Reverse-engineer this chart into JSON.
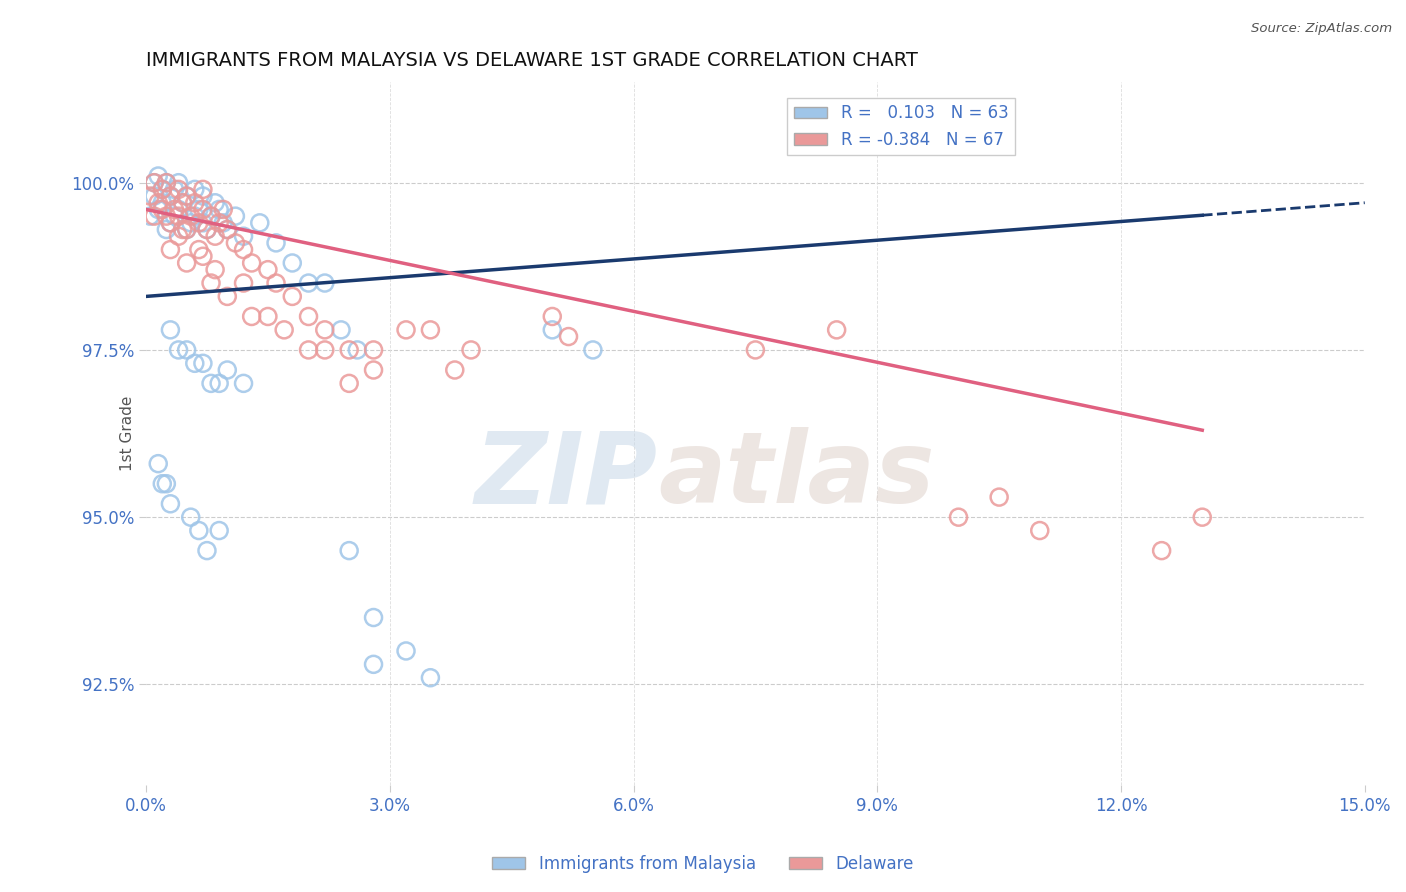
{
  "title": "IMMIGRANTS FROM MALAYSIA VS DELAWARE 1ST GRADE CORRELATION CHART",
  "source": "Source: ZipAtlas.com",
  "ylabel": "1st Grade",
  "xmin": 0.0,
  "xmax": 15.0,
  "ymin": 91.0,
  "ymax": 101.5,
  "yticks": [
    92.5,
    95.0,
    97.5,
    100.0
  ],
  "xticks": [
    0.0,
    3.0,
    6.0,
    9.0,
    12.0,
    15.0
  ],
  "R_blue": 0.103,
  "N_blue": 63,
  "R_pink": -0.384,
  "N_pink": 67,
  "blue_color": "#9fc5e8",
  "pink_color": "#ea9999",
  "blue_line_color": "#1a3a6e",
  "pink_line_color": "#e06080",
  "axis_color": "#4472c4",
  "watermark_zip": "ZIP",
  "watermark_atlas": "atlas",
  "blue_scatter_x": [
    0.05,
    0.1,
    0.1,
    0.15,
    0.15,
    0.2,
    0.2,
    0.25,
    0.25,
    0.3,
    0.3,
    0.35,
    0.35,
    0.4,
    0.4,
    0.45,
    0.5,
    0.5,
    0.55,
    0.6,
    0.6,
    0.65,
    0.7,
    0.7,
    0.75,
    0.8,
    0.85,
    0.9,
    0.95,
    1.0,
    1.1,
    1.2,
    1.4,
    1.6,
    1.8,
    2.0,
    2.2,
    2.4,
    2.6,
    0.3,
    0.5,
    0.6,
    0.8,
    1.0,
    1.2,
    0.4,
    0.9,
    0.7,
    5.0,
    5.5,
    0.2,
    0.3,
    0.9,
    2.5,
    2.8,
    3.2,
    2.8,
    3.5,
    0.15,
    0.25,
    0.55,
    0.65,
    0.75
  ],
  "blue_scatter_y": [
    99.5,
    99.8,
    100.0,
    99.6,
    100.1,
    99.7,
    99.9,
    99.3,
    100.0,
    99.4,
    99.8,
    99.5,
    99.9,
    99.6,
    100.0,
    99.7,
    99.3,
    99.8,
    99.4,
    99.5,
    99.9,
    99.6,
    99.4,
    99.8,
    99.3,
    99.5,
    99.7,
    99.6,
    99.4,
    99.3,
    99.5,
    99.2,
    99.4,
    99.1,
    98.8,
    98.5,
    98.5,
    97.8,
    97.5,
    97.8,
    97.5,
    97.3,
    97.0,
    97.2,
    97.0,
    97.5,
    97.0,
    97.3,
    97.8,
    97.5,
    95.5,
    95.2,
    94.8,
    94.5,
    93.5,
    93.0,
    92.8,
    92.6,
    95.8,
    95.5,
    95.0,
    94.8,
    94.5
  ],
  "pink_scatter_x": [
    0.05,
    0.1,
    0.1,
    0.15,
    0.2,
    0.2,
    0.25,
    0.3,
    0.3,
    0.35,
    0.4,
    0.4,
    0.45,
    0.5,
    0.5,
    0.55,
    0.6,
    0.65,
    0.7,
    0.7,
    0.75,
    0.8,
    0.85,
    0.9,
    0.95,
    1.0,
    1.1,
    1.2,
    1.3,
    1.5,
    1.6,
    1.8,
    2.0,
    2.2,
    2.5,
    2.8,
    1.2,
    1.5,
    2.0,
    2.5,
    3.5,
    3.8,
    4.0,
    5.0,
    5.2,
    7.5,
    8.5,
    10.0,
    10.5,
    11.0,
    12.5,
    13.0,
    0.3,
    0.5,
    0.8,
    1.0,
    1.3,
    1.7,
    2.2,
    0.4,
    0.7,
    2.8,
    3.2,
    0.25,
    0.45,
    0.65,
    0.85
  ],
  "pink_scatter_y": [
    99.8,
    100.0,
    99.5,
    99.7,
    99.9,
    99.6,
    100.0,
    99.8,
    99.4,
    99.6,
    99.9,
    99.5,
    99.7,
    99.3,
    99.8,
    99.5,
    99.7,
    99.4,
    99.6,
    99.9,
    99.3,
    99.5,
    99.2,
    99.4,
    99.6,
    99.3,
    99.1,
    99.0,
    98.8,
    98.7,
    98.5,
    98.3,
    98.0,
    97.8,
    97.5,
    97.2,
    98.5,
    98.0,
    97.5,
    97.0,
    97.8,
    97.2,
    97.5,
    98.0,
    97.7,
    97.5,
    97.8,
    95.0,
    95.3,
    94.8,
    94.5,
    95.0,
    99.0,
    98.8,
    98.5,
    98.3,
    98.0,
    97.8,
    97.5,
    99.2,
    98.9,
    97.5,
    97.8,
    99.5,
    99.3,
    99.0,
    98.7
  ],
  "blue_trend_x0": 0.0,
  "blue_trend_x1": 15.0,
  "blue_trend_y0": 98.3,
  "blue_trend_y1": 99.7,
  "blue_solid_end": 13.0,
  "pink_trend_x0": 0.0,
  "pink_trend_x1": 13.0,
  "pink_trend_y0": 99.6,
  "pink_trend_y1": 96.3
}
